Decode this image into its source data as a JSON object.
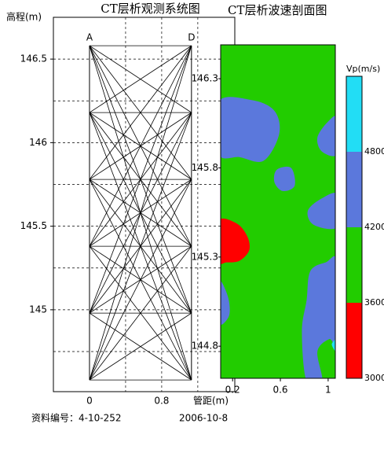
{
  "chart_data": [
    {
      "type": "ray",
      "title": "CT层析观测系统图",
      "ylabel": "高程(m)",
      "xlabel": "管距(m)",
      "xlim": [
        -0.4,
        1.61
      ],
      "ylim": [
        144.51,
        146.75
      ],
      "xticks": [
        0,
        0.8
      ],
      "yticks": [
        146.5,
        146,
        145.5,
        145
      ],
      "xgrid": [
        0.4,
        0.8,
        1.2
      ],
      "ygrid": [
        146.5,
        146.25,
        146,
        145.75,
        145.5,
        145.25,
        145,
        144.75
      ],
      "boreholes": [
        {
          "label": "A",
          "x": 0
        },
        {
          "label": "D",
          "x": 1.13
        }
      ],
      "sources": [
        146.58,
        146.18,
        145.78,
        145.38,
        144.98,
        144.58
      ],
      "receivers": [
        146.58,
        146.18,
        145.78,
        145.38,
        144.98,
        144.58
      ],
      "color": "#000000"
    },
    {
      "type": "contour",
      "title": "CT层析波速剖面图",
      "xlim": [
        0.1,
        1.06
      ],
      "ylim": [
        144.62,
        146.49
      ],
      "xticks": [
        0.2,
        0.6,
        1.0
      ],
      "yticks": [
        146.3,
        145.8,
        145.3,
        144.8
      ],
      "background_band": 1,
      "colorbar": {
        "label": "Vp(m/s)",
        "lim": [
          3000,
          5400
        ],
        "ticks": [
          3000,
          3600,
          4200,
          4800
        ],
        "colors": [
          "#ff0000",
          "#22cc00",
          "#5b78dc",
          "#22ddf5"
        ]
      },
      "zones": [
        {
          "band": 2,
          "points": [
            [
              0.08,
              146.17
            ],
            [
              0.36,
              146.18
            ],
            [
              0.55,
              146.12
            ],
            [
              0.59,
              145.99
            ],
            [
              0.46,
              145.84
            ],
            [
              0.26,
              145.86
            ],
            [
              0.08,
              145.88
            ]
          ]
        },
        {
          "band": 2,
          "points": [
            [
              0.57,
              145.79
            ],
            [
              0.69,
              145.8
            ],
            [
              0.72,
              145.7
            ],
            [
              0.62,
              145.67
            ],
            [
              0.55,
              145.72
            ]
          ]
        },
        {
          "band": 2,
          "points": [
            [
              0.91,
              145.97
            ],
            [
              1.0,
              146.06
            ],
            [
              1.08,
              146.08
            ],
            [
              1.08,
              145.88
            ],
            [
              0.95,
              145.89
            ]
          ]
        },
        {
          "band": 2,
          "points": [
            [
              0.83,
              145.56
            ],
            [
              0.95,
              145.63
            ],
            [
              1.08,
              145.65
            ],
            [
              1.08,
              145.47
            ],
            [
              0.88,
              145.48
            ]
          ]
        },
        {
          "band": 2,
          "points": [
            [
              0.85,
              145.22
            ],
            [
              0.98,
              145.27
            ],
            [
              1.08,
              145.27
            ],
            [
              1.08,
              144.82
            ],
            [
              1.01,
              144.84
            ],
            [
              0.91,
              144.77
            ],
            [
              0.95,
              144.6
            ],
            [
              0.82,
              144.6
            ],
            [
              0.78,
              144.88
            ],
            [
              0.82,
              145.06
            ]
          ]
        },
        {
          "band": 2,
          "points": [
            [
              0.08,
              145.17
            ],
            [
              0.16,
              145.08
            ],
            [
              0.17,
              144.97
            ],
            [
              0.08,
              144.93
            ]
          ]
        },
        {
          "band": 0,
          "points": [
            [
              0.08,
              145.5
            ],
            [
              0.23,
              145.49
            ],
            [
              0.32,
              145.42
            ],
            [
              0.34,
              145.34
            ],
            [
              0.26,
              145.28
            ],
            [
              0.15,
              145.27
            ],
            [
              0.08,
              145.28
            ]
          ]
        },
        {
          "band": 3,
          "points": [
            [
              1.03,
              144.81
            ],
            [
              1.08,
              144.84
            ],
            [
              1.08,
              144.76
            ]
          ]
        }
      ]
    }
  ],
  "footer": [
    "资料编号：4-10-252",
    "2006-10-8"
  ]
}
